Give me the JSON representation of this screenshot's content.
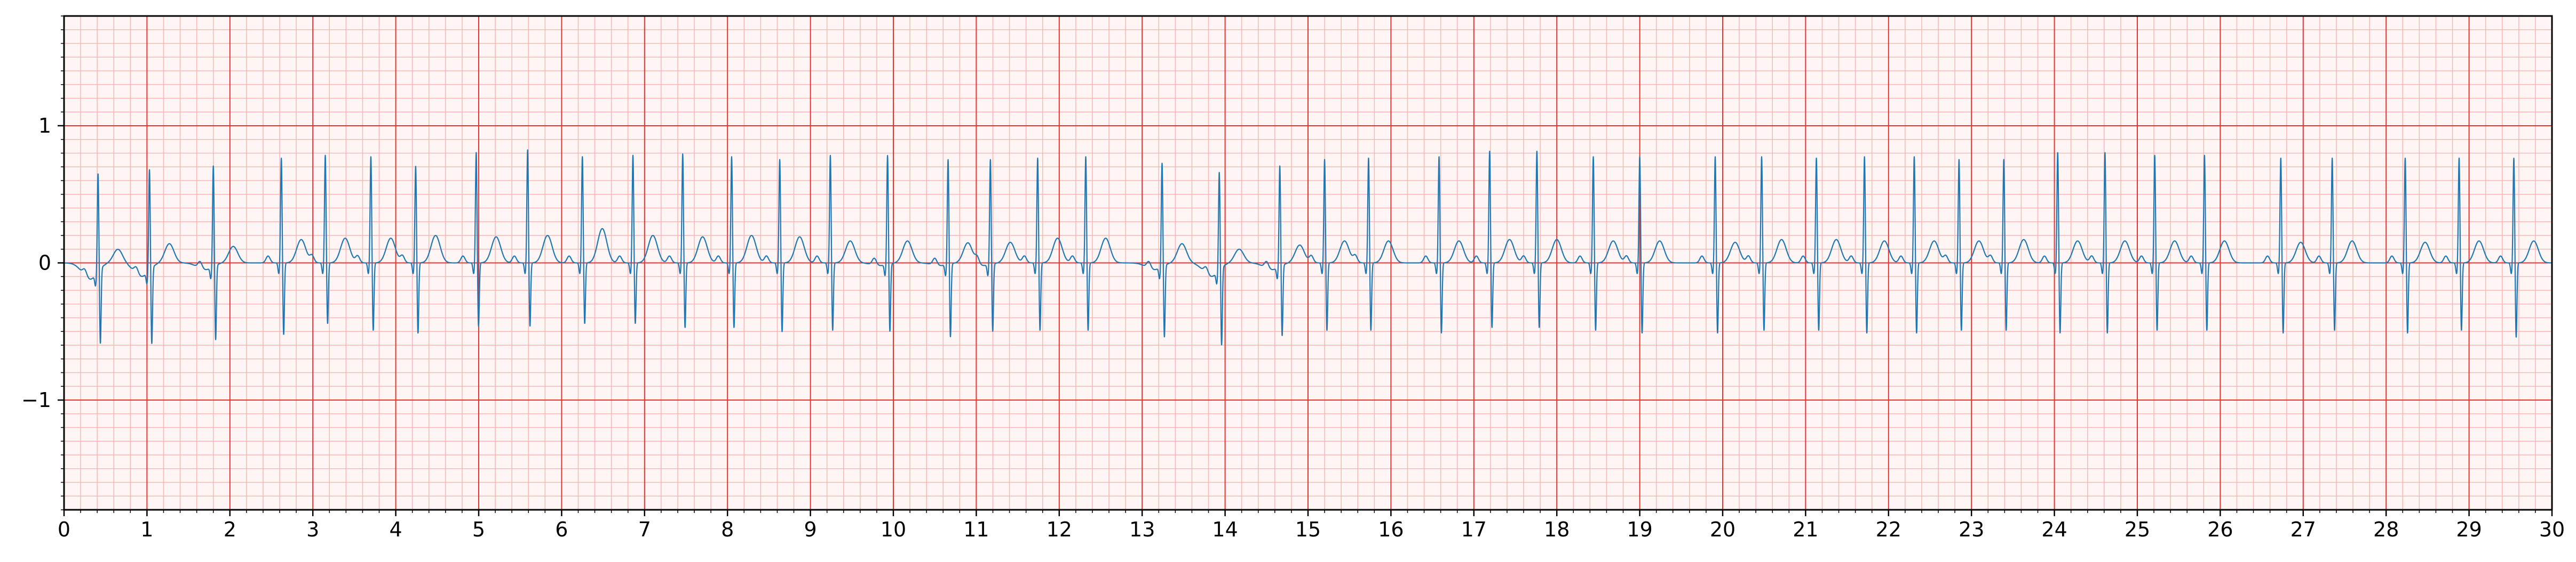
{
  "chart_data": {
    "type": "line",
    "title": "",
    "xlabel": "",
    "ylabel": "",
    "xlim": [
      0,
      30
    ],
    "ylim": [
      -1.8,
      1.8
    ],
    "x_ticks": [
      0,
      1,
      2,
      3,
      4,
      5,
      6,
      7,
      8,
      9,
      10,
      11,
      12,
      13,
      14,
      15,
      16,
      17,
      18,
      19,
      20,
      21,
      22,
      23,
      24,
      25,
      26,
      27,
      28,
      29,
      30
    ],
    "x_tick_labels": [
      "0",
      "1",
      "2",
      "3",
      "4",
      "5",
      "6",
      "7",
      "8",
      "9",
      "10",
      "11",
      "12",
      "13",
      "14",
      "15",
      "16",
      "17",
      "18",
      "19",
      "20",
      "21",
      "22",
      "23",
      "24",
      "25",
      "26",
      "27",
      "28",
      "29",
      "30"
    ],
    "y_ticks": [
      -1,
      0,
      1
    ],
    "y_tick_labels": [
      "−1",
      "0",
      "1"
    ],
    "grid": {
      "major": true,
      "minor": true,
      "major_x_step": 1.0,
      "minor_x_step": 0.2,
      "major_y_step": 1.0,
      "minor_y_step": 0.1,
      "major_color": "#e8342f",
      "minor_color": "#f7b7b4"
    },
    "line_color": "#1f77b4",
    "background_color": "#fff5f5",
    "legend": "none",
    "series": [
      {
        "beats": [
          {
            "t": 0.41,
            "r": 0.72,
            "s": -0.55,
            "pre": -0.12,
            "tw": 0.1
          },
          {
            "t": 1.03,
            "r": 0.74,
            "s": -0.56,
            "pre": -0.1,
            "tw": 0.14
          },
          {
            "t": 1.8,
            "r": 0.74,
            "s": -0.55,
            "pre": -0.05,
            "tw": 0.12
          },
          {
            "t": 2.62,
            "r": 0.77,
            "s": -0.53,
            "pre": 0.0,
            "tw": 0.17
          },
          {
            "t": 3.15,
            "r": 0.79,
            "s": -0.45,
            "pre": 0.0,
            "tw": 0.18
          },
          {
            "t": 3.7,
            "r": 0.78,
            "s": -0.5,
            "pre": 0.0,
            "tw": 0.18
          },
          {
            "t": 4.24,
            "r": 0.71,
            "s": -0.52,
            "pre": 0.0,
            "tw": 0.2
          },
          {
            "t": 4.97,
            "r": 0.81,
            "s": -0.47,
            "pre": 0.0,
            "tw": 0.19
          },
          {
            "t": 5.59,
            "r": 0.83,
            "s": -0.47,
            "pre": 0.0,
            "tw": 0.2
          },
          {
            "t": 6.25,
            "r": 0.78,
            "s": -0.45,
            "pre": 0.0,
            "tw": 0.25
          },
          {
            "t": 6.86,
            "r": 0.79,
            "s": -0.45,
            "pre": 0.0,
            "tw": 0.2
          },
          {
            "t": 7.46,
            "r": 0.8,
            "s": -0.48,
            "pre": 0.0,
            "tw": 0.19
          },
          {
            "t": 8.05,
            "r": 0.78,
            "s": -0.48,
            "pre": 0.0,
            "tw": 0.2
          },
          {
            "t": 8.63,
            "r": 0.76,
            "s": -0.51,
            "pre": 0.0,
            "tw": 0.19
          },
          {
            "t": 9.24,
            "r": 0.79,
            "s": -0.5,
            "pre": 0.0,
            "tw": 0.16
          },
          {
            "t": 9.93,
            "r": 0.8,
            "s": -0.5,
            "pre": -0.02,
            "tw": 0.16
          },
          {
            "t": 10.66,
            "r": 0.77,
            "s": -0.54,
            "pre": -0.02,
            "tw": 0.15
          },
          {
            "t": 11.17,
            "r": 0.77,
            "s": -0.5,
            "pre": -0.02,
            "tw": 0.15
          },
          {
            "t": 11.74,
            "r": 0.77,
            "s": -0.5,
            "pre": 0.0,
            "tw": 0.18
          },
          {
            "t": 12.32,
            "r": 0.78,
            "s": -0.5,
            "pre": 0.0,
            "tw": 0.18
          },
          {
            "t": 13.24,
            "r": 0.76,
            "s": -0.53,
            "pre": -0.05,
            "tw": 0.14
          },
          {
            "t": 13.93,
            "r": 0.72,
            "s": -0.57,
            "pre": -0.1,
            "tw": 0.1
          },
          {
            "t": 14.66,
            "r": 0.74,
            "s": -0.52,
            "pre": -0.05,
            "tw": 0.13
          },
          {
            "t": 15.2,
            "r": 0.76,
            "s": -0.5,
            "pre": 0.0,
            "tw": 0.16
          },
          {
            "t": 15.73,
            "r": 0.77,
            "s": -0.5,
            "pre": 0.0,
            "tw": 0.16
          },
          {
            "t": 16.58,
            "r": 0.78,
            "s": -0.52,
            "pre": 0.0,
            "tw": 0.16
          },
          {
            "t": 17.19,
            "r": 0.82,
            "s": -0.48,
            "pre": 0.0,
            "tw": 0.17
          },
          {
            "t": 17.76,
            "r": 0.82,
            "s": -0.48,
            "pre": 0.0,
            "tw": 0.17
          },
          {
            "t": 18.44,
            "r": 0.78,
            "s": -0.5,
            "pre": 0.0,
            "tw": 0.16
          },
          {
            "t": 19.0,
            "r": 0.78,
            "s": -0.52,
            "pre": 0.0,
            "tw": 0.16
          },
          {
            "t": 19.91,
            "r": 0.78,
            "s": -0.52,
            "pre": 0.0,
            "tw": 0.15
          },
          {
            "t": 20.47,
            "r": 0.78,
            "s": -0.5,
            "pre": 0.0,
            "tw": 0.17
          },
          {
            "t": 21.13,
            "r": 0.77,
            "s": -0.5,
            "pre": 0.0,
            "tw": 0.17
          },
          {
            "t": 21.71,
            "r": 0.78,
            "s": -0.52,
            "pre": 0.0,
            "tw": 0.16
          },
          {
            "t": 22.31,
            "r": 0.78,
            "s": -0.52,
            "pre": 0.0,
            "tw": 0.16
          },
          {
            "t": 22.85,
            "r": 0.76,
            "s": -0.5,
            "pre": 0.0,
            "tw": 0.16
          },
          {
            "t": 23.39,
            "r": 0.76,
            "s": -0.5,
            "pre": 0.0,
            "tw": 0.17
          },
          {
            "t": 24.04,
            "r": 0.81,
            "s": -0.52,
            "pre": 0.0,
            "tw": 0.16
          },
          {
            "t": 24.61,
            "r": 0.81,
            "s": -0.52,
            "pre": 0.0,
            "tw": 0.16
          },
          {
            "t": 25.21,
            "r": 0.79,
            "s": -0.5,
            "pre": 0.0,
            "tw": 0.16
          },
          {
            "t": 25.81,
            "r": 0.79,
            "s": -0.5,
            "pre": 0.0,
            "tw": 0.16
          },
          {
            "t": 26.73,
            "r": 0.77,
            "s": -0.52,
            "pre": 0.0,
            "tw": 0.15
          },
          {
            "t": 27.35,
            "r": 0.77,
            "s": -0.5,
            "pre": 0.0,
            "tw": 0.16
          },
          {
            "t": 28.23,
            "r": 0.77,
            "s": -0.52,
            "pre": 0.0,
            "tw": 0.15
          },
          {
            "t": 28.88,
            "r": 0.77,
            "s": -0.5,
            "pre": 0.0,
            "tw": 0.16
          },
          {
            "t": 29.54,
            "r": 0.77,
            "s": -0.55,
            "pre": 0.0,
            "tw": 0.16
          }
        ]
      }
    ]
  }
}
